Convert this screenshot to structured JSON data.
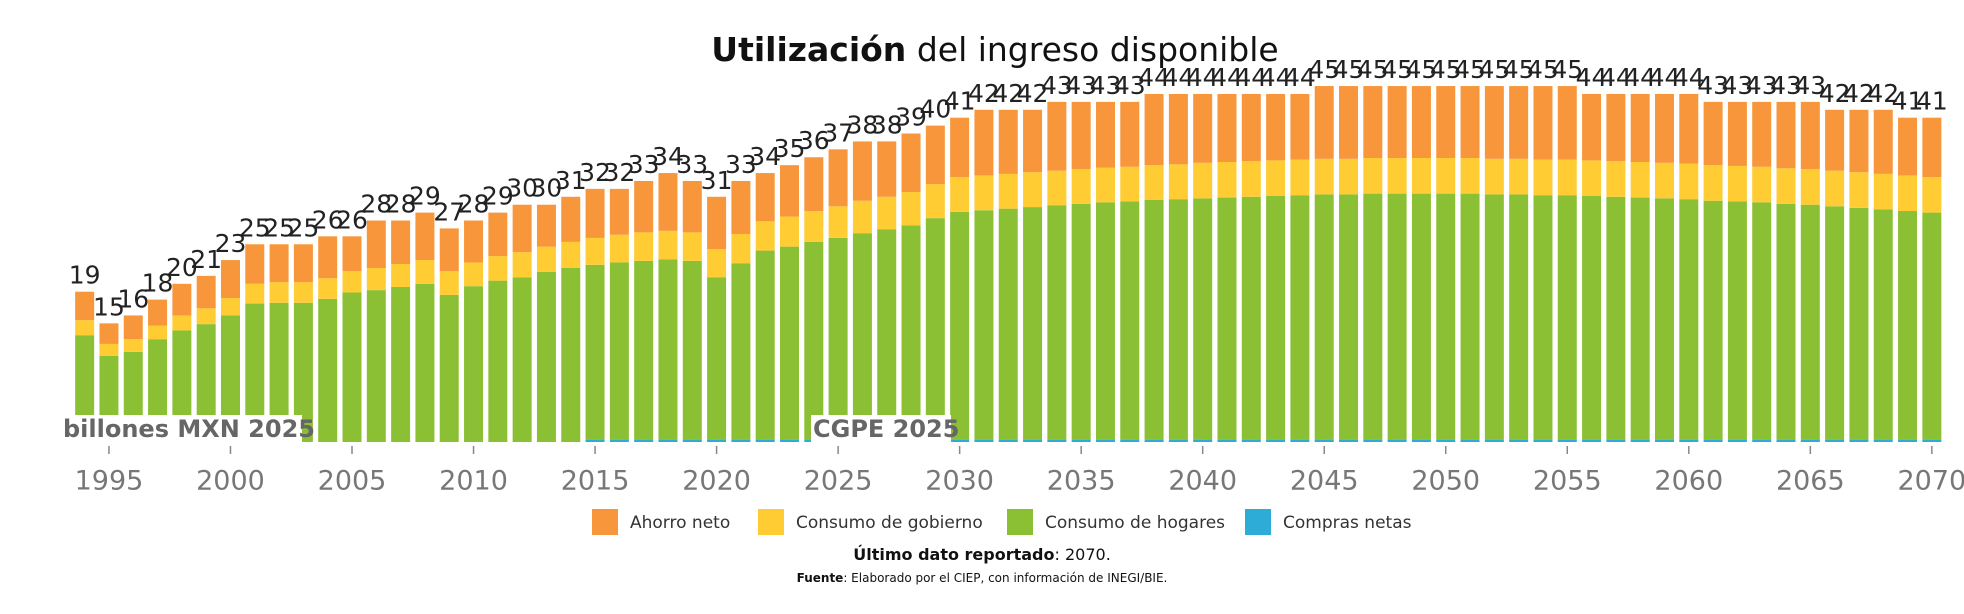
{
  "chart_data": {
    "type": "stacked_bar",
    "title_bold": "Utilización",
    "title": "del ingreso disponible",
    "unit_label": "billones MXN 2025",
    "annotation": "CGPE 2025",
    "note_bold": "Último dato reportado",
    "note_text": ": 2070.",
    "source_bold": "Fuente",
    "source_text": ": Elaborado por el CIEP, con información de INEGI/BIE.",
    "x": [
      1994,
      1995,
      1996,
      1997,
      1998,
      1999,
      2000,
      2001,
      2002,
      2003,
      2004,
      2005,
      2006,
      2007,
      2008,
      2009,
      2010,
      2011,
      2012,
      2013,
      2014,
      2015,
      2016,
      2017,
      2018,
      2019,
      2020,
      2021,
      2022,
      2023,
      2024,
      2025,
      2026,
      2027,
      2028,
      2029,
      2030,
      2031,
      2032,
      2033,
      2034,
      2035,
      2036,
      2037,
      2038,
      2039,
      2040,
      2041,
      2042,
      2043,
      2044,
      2045,
      2046,
      2047,
      2048,
      2049,
      2050,
      2051,
      2052,
      2053,
      2054,
      2055,
      2056,
      2057,
      2058,
      2059,
      2060,
      2061,
      2062,
      2063,
      2064,
      2065,
      2066,
      2067,
      2068,
      2069,
      2070
    ],
    "xlim": [
      1993.5,
      2070.5
    ],
    "xticks": [
      1995,
      2000,
      2005,
      2010,
      2015,
      2020,
      2025,
      2030,
      2035,
      2040,
      2045,
      2050,
      2055,
      2060,
      2065,
      2070
    ],
    "ylim": [
      0,
      50
    ],
    "totals": [
      19,
      15,
      16,
      18,
      20,
      21,
      23,
      25,
      25,
      25,
      26,
      26,
      28,
      28,
      29,
      27,
      28,
      29,
      30,
      30,
      31,
      32,
      32,
      33,
      34,
      33,
      31,
      33,
      34,
      35,
      36,
      37,
      38,
      38,
      39,
      40,
      41,
      42,
      42,
      42,
      43,
      43,
      43,
      43,
      44,
      44,
      44,
      44,
      44,
      44,
      44,
      45,
      45,
      45,
      45,
      45,
      45,
      45,
      45,
      45,
      45,
      45,
      44,
      44,
      44,
      44,
      44,
      43,
      43,
      43,
      43,
      43,
      42,
      42,
      42,
      41,
      41
    ],
    "series": [
      {
        "name": "Ahorro neto",
        "color": "#F7963A",
        "values": [
          3.6,
          2.6,
          3.0,
          3.3,
          4.0,
          4.1,
          4.8,
          5.0,
          4.8,
          4.8,
          5.3,
          4.4,
          6.0,
          5.5,
          6.0,
          5.4,
          5.3,
          5.5,
          6.0,
          5.3,
          5.7,
          6.2,
          5.8,
          6.5,
          7.3,
          6.5,
          6.6,
          6.7,
          6.1,
          6.5,
          6.8,
          7.2,
          7.5,
          7.0,
          7.4,
          7.4,
          7.5,
          8.3,
          8.1,
          7.9,
          8.7,
          8.5,
          8.3,
          8.2,
          9.0,
          8.9,
          8.7,
          8.6,
          8.5,
          8.4,
          8.3,
          9.2,
          9.2,
          9.1,
          9.1,
          9.1,
          9.1,
          9.1,
          9.2,
          9.2,
          9.3,
          9.3,
          8.4,
          8.5,
          8.6,
          8.7,
          8.8,
          8.0,
          8.1,
          8.2,
          8.4,
          8.5,
          7.7,
          7.9,
          8.1,
          7.3,
          7.5
        ]
      },
      {
        "name": "Consumo de gobierno",
        "color": "#FFCC33",
        "values": [
          1.9,
          1.5,
          1.6,
          1.7,
          1.9,
          2.0,
          2.2,
          2.5,
          2.6,
          2.6,
          2.6,
          2.7,
          2.8,
          2.9,
          3.0,
          3.0,
          3.0,
          3.1,
          3.2,
          3.2,
          3.3,
          3.4,
          3.5,
          3.6,
          3.6,
          3.6,
          3.6,
          3.7,
          3.7,
          3.8,
          3.9,
          4.0,
          4.1,
          4.1,
          4.2,
          4.3,
          4.4,
          4.4,
          4.4,
          4.4,
          4.4,
          4.4,
          4.4,
          4.4,
          4.4,
          4.4,
          4.5,
          4.5,
          4.5,
          4.5,
          4.5,
          4.5,
          4.5,
          4.5,
          4.5,
          4.5,
          4.5,
          4.5,
          4.5,
          4.5,
          4.5,
          4.5,
          4.5,
          4.5,
          4.5,
          4.5,
          4.5,
          4.5,
          4.5,
          4.5,
          4.5,
          4.5,
          4.5,
          4.5,
          4.5,
          4.5,
          4.5
        ]
      },
      {
        "name": "Consumo de hogares",
        "color": "#8BC034",
        "values": [
          13.5,
          10.9,
          11.4,
          13.0,
          14.1,
          14.9,
          16.0,
          17.5,
          17.6,
          17.6,
          18.1,
          18.9,
          19.2,
          19.6,
          20.0,
          18.6,
          19.7,
          20.4,
          20.8,
          21.5,
          22.0,
          22.1,
          22.4,
          22.6,
          22.8,
          22.6,
          20.5,
          22.3,
          23.9,
          24.4,
          25.0,
          25.5,
          26.1,
          26.6,
          27.1,
          28.0,
          28.8,
          29.0,
          29.2,
          29.4,
          29.6,
          29.8,
          30.0,
          30.1,
          30.3,
          30.4,
          30.5,
          30.6,
          30.7,
          30.8,
          30.9,
          31.0,
          31.0,
          31.1,
          31.1,
          31.1,
          31.1,
          31.1,
          31.0,
          31.0,
          30.9,
          30.9,
          30.8,
          30.7,
          30.6,
          30.5,
          30.4,
          30.2,
          30.1,
          30.0,
          29.8,
          29.7,
          29.5,
          29.3,
          29.1,
          28.9,
          28.7
        ]
      },
      {
        "name": "Compras netas",
        "color": "#2EACD8",
        "values": [
          0,
          0,
          0,
          0,
          0,
          0,
          0,
          0,
          0,
          0,
          0,
          0,
          0,
          0,
          0,
          0,
          0,
          0,
          0,
          0,
          0,
          0.3,
          0.3,
          0.3,
          0.3,
          0.3,
          0.3,
          0.3,
          0.3,
          0.3,
          0.3,
          0.3,
          0.3,
          0.3,
          0.3,
          0.3,
          0.3,
          0.3,
          0.3,
          0.3,
          0.3,
          0.3,
          0.3,
          0.3,
          0.3,
          0.3,
          0.3,
          0.3,
          0.3,
          0.3,
          0.3,
          0.3,
          0.3,
          0.3,
          0.3,
          0.3,
          0.3,
          0.3,
          0.3,
          0.3,
          0.3,
          0.3,
          0.3,
          0.3,
          0.3,
          0.3,
          0.3,
          0.3,
          0.3,
          0.3,
          0.3,
          0.3,
          0.3,
          0.3,
          0.3,
          0.3,
          0.3
        ]
      }
    ]
  }
}
